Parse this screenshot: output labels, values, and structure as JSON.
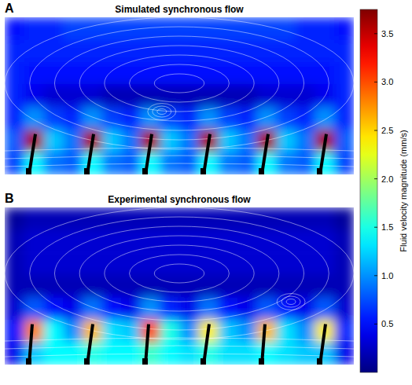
{
  "chart_data": {
    "type": "heatmap",
    "tick_labels": false,
    "colorbar_label": "Fluid velocity magnitude (mm/s)",
    "color_range": [
      0,
      3.75
    ],
    "color_ticks": [
      0.5,
      {
        "value": 1,
        "label": "1.0"
      },
      1.5,
      {
        "value": 2,
        "label": "2.0"
      },
      2.5,
      {
        "value": 3,
        "label": "3.0"
      },
      3.5
    ],
    "panels": [
      {
        "letter": "A",
        "title": "Simulated synchronous flow",
        "cells": [
          [
            0.5,
            0.6,
            0.6,
            0.7,
            0.7,
            0.7,
            0.7,
            0.7,
            0.7,
            0.7,
            0.7,
            0.7,
            0.7,
            0.7,
            0.7,
            0.6,
            0.6,
            0.5
          ],
          [
            0.6,
            0.6,
            0.6,
            0.6,
            0.6,
            0.6,
            0.6,
            0.6,
            0.6,
            0.6,
            0.6,
            0.6,
            0.6,
            0.6,
            0.6,
            0.6,
            0.6,
            0.6
          ],
          [
            0.6,
            0.5,
            0.5,
            0.5,
            0.5,
            0.5,
            0.5,
            0.5,
            0.5,
            0.5,
            0.5,
            0.5,
            0.5,
            0.5,
            0.5,
            0.5,
            0.5,
            0.6
          ],
          [
            0.6,
            0.4,
            0.3,
            0.3,
            0.3,
            0.2,
            0.2,
            0.2,
            0.2,
            0.2,
            0.2,
            0.2,
            0.2,
            0.3,
            0.3,
            0.3,
            0.4,
            0.6
          ],
          [
            0.6,
            1.0,
            0.7,
            0.6,
            1.0,
            0.7,
            0.6,
            1.0,
            0.7,
            0.6,
            1.0,
            0.7,
            0.6,
            1.0,
            0.7,
            0.6,
            1.0,
            0.6
          ],
          [
            0.8,
            3.6,
            1.2,
            0.9,
            3.6,
            1.2,
            0.9,
            3.6,
            1.2,
            0.9,
            3.6,
            1.2,
            0.9,
            3.6,
            1.2,
            0.9,
            3.6,
            0.8
          ],
          [
            0.7,
            1.4,
            0.9,
            0.8,
            1.4,
            0.9,
            0.8,
            1.4,
            0.9,
            0.8,
            1.4,
            0.9,
            0.8,
            1.4,
            0.9,
            0.8,
            1.4,
            0.7
          ]
        ]
      },
      {
        "letter": "B",
        "title": "Experimental synchronous flow",
        "cells": [
          [
            0.1,
            0.2,
            0.2,
            0.2,
            0.2,
            0.2,
            0.2,
            0.2,
            0.2,
            0.2,
            0.2,
            0.2,
            0.2,
            0.2,
            0.2,
            0.2,
            0.2,
            0.1
          ],
          [
            0.2,
            0.3,
            0.3,
            0.3,
            0.3,
            0.3,
            0.3,
            0.3,
            0.3,
            0.3,
            0.3,
            0.3,
            0.3,
            0.3,
            0.3,
            0.3,
            0.3,
            0.2
          ],
          [
            0.2,
            0.3,
            0.3,
            0.3,
            0.3,
            0.3,
            0.3,
            0.3,
            0.3,
            0.3,
            0.3,
            0.3,
            0.3,
            0.3,
            0.3,
            0.3,
            0.3,
            0.2
          ],
          [
            0.2,
            0.2,
            0.2,
            0.2,
            0.2,
            0.2,
            0.2,
            0.2,
            0.2,
            0.2,
            0.2,
            0.2,
            0.2,
            0.2,
            0.2,
            0.2,
            0.2,
            0.2
          ],
          [
            0.3,
            0.8,
            0.5,
            0.4,
            0.9,
            0.5,
            0.4,
            1.0,
            0.6,
            0.4,
            0.9,
            0.5,
            0.4,
            0.8,
            0.5,
            0.4,
            0.8,
            0.3
          ],
          [
            0.5,
            2.8,
            1.4,
            1.0,
            2.6,
            1.3,
            1.2,
            3.0,
            1.5,
            1.0,
            2.4,
            1.2,
            1.0,
            2.6,
            1.3,
            1.0,
            2.4,
            0.6
          ],
          [
            0.4,
            1.2,
            1.4,
            1.4,
            1.5,
            1.4,
            1.4,
            1.6,
            1.4,
            1.3,
            1.5,
            1.3,
            1.3,
            1.4,
            1.3,
            1.2,
            1.2,
            0.4
          ]
        ]
      }
    ]
  }
}
